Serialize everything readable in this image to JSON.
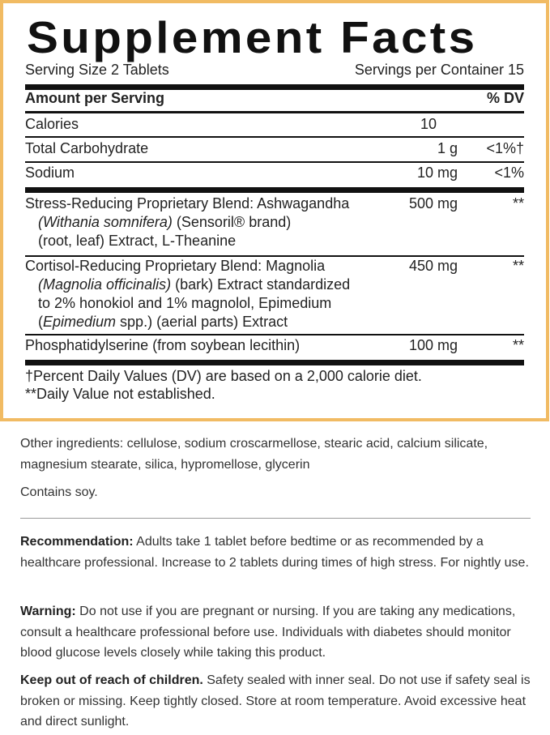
{
  "facts": {
    "title": "Supplement Facts",
    "serving_size": "Serving Size 2 Tablets",
    "servings_per_container": "Servings per Container 15",
    "header_amount": "Amount per Serving",
    "header_dv": "% DV",
    "rows": [
      {
        "name": "Calories",
        "amount": "10",
        "dv": ""
      },
      {
        "name": "Total Carbohydrate",
        "amount": "1 g",
        "dv": "<1%†"
      },
      {
        "name": "Sodium",
        "amount": "10 mg",
        "dv": "<1%"
      }
    ],
    "blend1": {
      "line1": "Stress-Reducing Proprietary Blend: Ashwagandha",
      "line2_italic": "(Withania somnifera)",
      "line2_rest": " (Sensoril® brand)",
      "line3": "(root, leaf) Extract, L-Theanine",
      "amount": "500 mg",
      "dv": "**"
    },
    "blend2": {
      "line1": "Cortisol-Reducing Proprietary Blend: Magnolia",
      "line2_italic": "(Magnolia officinalis)",
      "line2_rest": " (bark) Extract standardized",
      "line3": "to 2% honokiol and 1% magnolol, Epimedium",
      "line4_open": "(",
      "line4_italic": "Epimedium",
      "line4_rest": " spp.) (aerial parts) Extract",
      "amount": "450 mg",
      "dv": "**"
    },
    "ps": {
      "name": "Phosphatidylserine (from soybean lecithin)",
      "amount": "100 mg",
      "dv": "**"
    },
    "footnote1": "†Percent Daily Values (DV) are based on a 2,000 calorie diet.",
    "footnote2": "**Daily Value not established."
  },
  "other": {
    "ingredients": "Other ingredients: cellulose, sodium croscarmellose, stearic acid, calcium silicate, magnesium stearate, silica, hypromellose, glycerin",
    "contains": "Contains soy."
  },
  "recommendation": {
    "label": "Recommendation:",
    "text": " Adults take 1 tablet before bedtime or as recommended by a healthcare professional. Increase to 2 tablets during times of high stress. For nightly use."
  },
  "warning": {
    "label": "Warning:",
    "text": " Do not use if you are pregnant or nursing. If you are taking any medications, consult a healthcare professional before use. Individuals with diabetes should monitor blood glucose levels closely while taking this product."
  },
  "keep": {
    "label": "Keep out of reach of children.",
    "text": " Safety sealed with inner seal. Do not use if safety seal is broken or missing. Keep tightly closed. Store at room temperature. Avoid excessive heat and direct sunlight."
  },
  "colors": {
    "border": "#f1bb63"
  }
}
